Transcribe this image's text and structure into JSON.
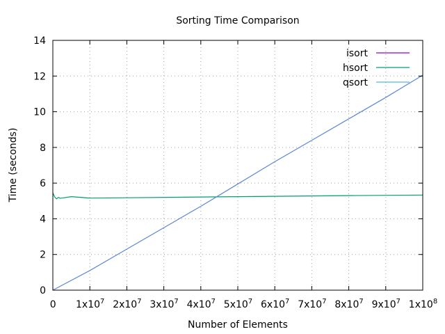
{
  "chart_data": {
    "type": "line",
    "title": "Sorting Time Comparison",
    "xlabel": "Number of Elements",
    "ylabel": "Time (seconds)",
    "xlim": [
      0,
      100000000
    ],
    "ylim": [
      0,
      14
    ],
    "grid": true,
    "legend_position": "top-right",
    "x_ticks": [
      {
        "value": 0,
        "base": "0",
        "exp": ""
      },
      {
        "value": 10000000,
        "base": "1x10",
        "exp": "7"
      },
      {
        "value": 20000000,
        "base": "2x10",
        "exp": "7"
      },
      {
        "value": 30000000,
        "base": "3x10",
        "exp": "7"
      },
      {
        "value": 40000000,
        "base": "4x10",
        "exp": "7"
      },
      {
        "value": 50000000,
        "base": "5x10",
        "exp": "7"
      },
      {
        "value": 60000000,
        "base": "6x10",
        "exp": "7"
      },
      {
        "value": 70000000,
        "base": "7x10",
        "exp": "7"
      },
      {
        "value": 80000000,
        "base": "8x10",
        "exp": "7"
      },
      {
        "value": 90000000,
        "base": "9x10",
        "exp": "7"
      },
      {
        "value": 100000000,
        "base": "1x10",
        "exp": "8"
      }
    ],
    "y_ticks": [
      {
        "value": 0,
        "label": "0"
      },
      {
        "value": 2,
        "label": "2"
      },
      {
        "value": 4,
        "label": "4"
      },
      {
        "value": 6,
        "label": "6"
      },
      {
        "value": 8,
        "label": "8"
      },
      {
        "value": 10,
        "label": "10"
      },
      {
        "value": 12,
        "label": "12"
      },
      {
        "value": 14,
        "label": "14"
      }
    ],
    "series": [
      {
        "name": "isort",
        "color": "#9400d3",
        "x": [],
        "y": []
      },
      {
        "name": "hsort",
        "color": "#009e73",
        "x": [
          0,
          500000,
          1000000,
          1500000,
          2000000,
          3000000,
          5000000,
          7500000,
          10000000,
          20000000,
          40000000,
          60000000,
          80000000,
          100000000
        ],
        "y": [
          5.45,
          5.22,
          5.12,
          5.2,
          5.15,
          5.18,
          5.24,
          5.2,
          5.16,
          5.18,
          5.22,
          5.26,
          5.3,
          5.33
        ]
      },
      {
        "name": "qsort",
        "color": "#56b4e9",
        "x": [
          0,
          10000000,
          20000000,
          30000000,
          40000000,
          50000000,
          60000000,
          70000000,
          80000000,
          90000000,
          100000000
        ],
        "y": [
          0.0,
          1.1,
          2.3,
          3.5,
          4.7,
          5.95,
          7.2,
          8.4,
          9.6,
          10.8,
          12.05
        ]
      }
    ]
  },
  "colors": {
    "qsort_line": "#5b86d6",
    "hsort_line": "#009e73",
    "qsort_legend": "#56b4e9"
  }
}
